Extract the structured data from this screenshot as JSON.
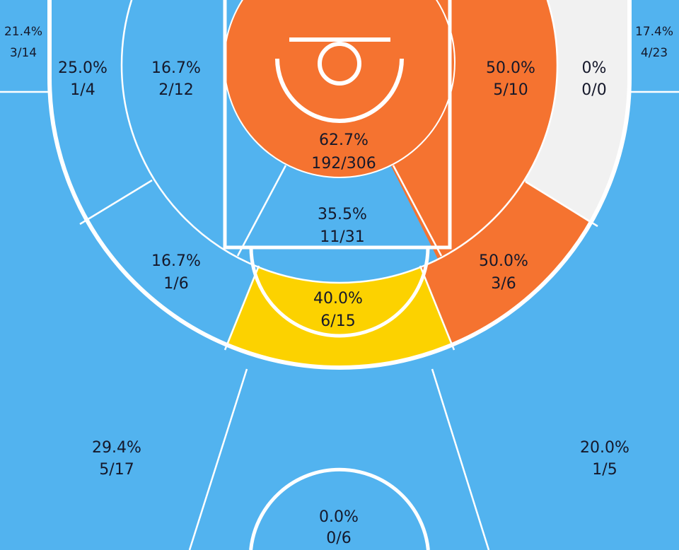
{
  "colors": {
    "cold": "#52b3ef",
    "hot": "#f57330",
    "average": "#fcd200",
    "no_attempts": "#f1f1f1",
    "lines": "#ffffff"
  },
  "chart_data": {
    "type": "heatmap",
    "description_kind": "basketball shot chart by court zone",
    "zones": {
      "left_corner_three": {
        "pct": "21.4%",
        "shots": "3/14",
        "fill": "cold"
      },
      "right_corner_three": {
        "pct": "17.4%",
        "shots": "4/23",
        "fill": "cold"
      },
      "left_baseline_long_mid": {
        "pct": "25.0%",
        "shots": "1/4",
        "fill": "cold"
      },
      "left_short_mid": {
        "pct": "16.7%",
        "shots": "2/12",
        "fill": "cold"
      },
      "restricted_area": {
        "pct": "62.7%",
        "shots": "192/306",
        "fill": "hot"
      },
      "right_short_mid": {
        "pct": "50.0%",
        "shots": "5/10",
        "fill": "hot"
      },
      "right_baseline_long_mid": {
        "pct": "0%",
        "shots": "0/0",
        "fill": "no_attempts"
      },
      "center_short_mid": {
        "pct": "35.5%",
        "shots": "11/31",
        "fill": "cold"
      },
      "left_wing_long_mid": {
        "pct": "16.7%",
        "shots": "1/6",
        "fill": "cold"
      },
      "center_long_mid": {
        "pct": "40.0%",
        "shots": "6/15",
        "fill": "average"
      },
      "right_wing_long_mid": {
        "pct": "50.0%",
        "shots": "3/6",
        "fill": "hot"
      },
      "left_wing_three": {
        "pct": "29.4%",
        "shots": "5/17",
        "fill": "cold"
      },
      "right_wing_three": {
        "pct": "20.0%",
        "shots": "1/5",
        "fill": "cold"
      },
      "top_key_three": {
        "pct": "0.0%",
        "shots": "0/6",
        "fill": "cold"
      }
    }
  }
}
